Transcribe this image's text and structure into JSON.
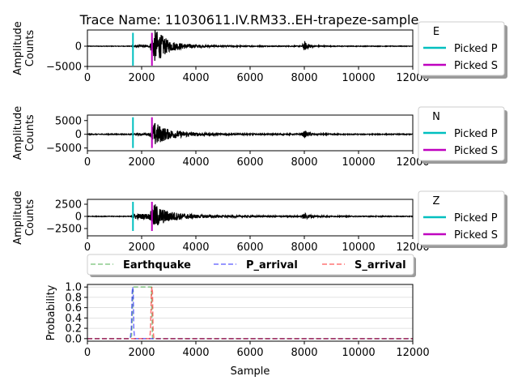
{
  "title": "Trace Name: 11030611.IV.RM33..EH-trapeze-sample",
  "chart_data": [
    {
      "type": "line",
      "channel": "E",
      "ylabel": [
        "Amplitude",
        "Counts"
      ],
      "xlim": [
        0,
        12000
      ],
      "ylim": [
        -5000,
        4000
      ],
      "xticks": [
        "0",
        "2000",
        "4000",
        "6000",
        "8000",
        "10000",
        "12000"
      ],
      "yticks": [
        {
          "v": 0,
          "label": "0"
        },
        {
          "v": -5000,
          "label": "−5000"
        }
      ],
      "picked_p": 1680,
      "picked_s": 2380,
      "pick_line_range": [
        -4800,
        3300
      ],
      "envelope": [
        [
          0,
          60
        ],
        [
          1600,
          60
        ],
        [
          1700,
          240
        ],
        [
          2300,
          260
        ],
        [
          2400,
          2400
        ],
        [
          2500,
          4200
        ],
        [
          2700,
          3000
        ],
        [
          3000,
          1400
        ],
        [
          3500,
          700
        ],
        [
          4000,
          350
        ],
        [
          5000,
          170
        ],
        [
          6000,
          120
        ],
        [
          7000,
          100
        ],
        [
          7900,
          110
        ],
        [
          8000,
          1200
        ],
        [
          8100,
          700
        ],
        [
          8400,
          180
        ],
        [
          9000,
          90
        ],
        [
          12000,
          60
        ]
      ],
      "legend": {
        "title": "E",
        "entries": [
          "Picked P",
          "Picked S"
        ]
      }
    },
    {
      "type": "line",
      "channel": "N",
      "ylabel": [
        "Amplitude",
        "Counts"
      ],
      "xlim": [
        0,
        12000
      ],
      "ylim": [
        -6000,
        7000
      ],
      "xticks": [
        "0",
        "2000",
        "4000",
        "6000",
        "8000",
        "10000",
        "12000"
      ],
      "yticks": [
        {
          "v": 5000,
          "label": "5000"
        },
        {
          "v": 0,
          "label": "0"
        },
        {
          "v": -5000,
          "label": "−5000"
        }
      ],
      "picked_p": 1680,
      "picked_s": 2380,
      "pick_line_range": [
        -5000,
        6200
      ],
      "envelope": [
        [
          0,
          150
        ],
        [
          1600,
          150
        ],
        [
          1700,
          300
        ],
        [
          2300,
          350
        ],
        [
          2400,
          3000
        ],
        [
          2500,
          4500
        ],
        [
          2700,
          3000
        ],
        [
          3000,
          1800
        ],
        [
          3500,
          1000
        ],
        [
          4000,
          600
        ],
        [
          5000,
          350
        ],
        [
          6000,
          250
        ],
        [
          7000,
          220
        ],
        [
          7900,
          250
        ],
        [
          8000,
          1300
        ],
        [
          8100,
          800
        ],
        [
          8400,
          300
        ],
        [
          9000,
          180
        ],
        [
          12000,
          150
        ]
      ],
      "legend": {
        "title": "N",
        "entries": [
          "Picked P",
          "Picked S"
        ]
      }
    },
    {
      "type": "line",
      "channel": "Z",
      "ylabel": [
        "Amplitude",
        "Counts"
      ],
      "xlim": [
        0,
        12000
      ],
      "ylim": [
        -4000,
        3500
      ],
      "xticks": [
        "0",
        "2000",
        "4000",
        "6000",
        "8000",
        "10000",
        "12000"
      ],
      "yticks": [
        {
          "v": 2500,
          "label": "2500"
        },
        {
          "v": 0,
          "label": "0"
        },
        {
          "v": -2500,
          "label": "−2500"
        }
      ],
      "picked_p": 1680,
      "picked_s": 2380,
      "pick_line_range": [
        -3000,
        3000
      ],
      "envelope": [
        [
          0,
          60
        ],
        [
          1600,
          60
        ],
        [
          1700,
          500
        ],
        [
          2300,
          600
        ],
        [
          2400,
          1900
        ],
        [
          2500,
          2600
        ],
        [
          2700,
          1700
        ],
        [
          3000,
          1100
        ],
        [
          3500,
          600
        ],
        [
          4000,
          380
        ],
        [
          5000,
          230
        ],
        [
          6000,
          160
        ],
        [
          7000,
          130
        ],
        [
          7900,
          160
        ],
        [
          8000,
          700
        ],
        [
          8100,
          500
        ],
        [
          8400,
          200
        ],
        [
          9000,
          110
        ],
        [
          12000,
          60
        ]
      ],
      "legend": {
        "title": "Z",
        "entries": [
          "Picked P",
          "Picked S"
        ]
      }
    },
    {
      "type": "line",
      "xlabel": "Sample",
      "ylabel": "Probability",
      "xlim": [
        0,
        12000
      ],
      "ylim": [
        -0.05,
        1.05
      ],
      "xticks": [
        "0",
        "2000",
        "4000",
        "6000",
        "8000",
        "10000",
        "12000"
      ],
      "yticks": [
        "0.0",
        "0.2",
        "0.4",
        "0.6",
        "0.8",
        "1.0"
      ],
      "grid": "horizontal",
      "legend": "above",
      "series": [
        {
          "name": "Earthquake",
          "color": "#2ca02c",
          "x": [
            0,
            1550,
            1630,
            1660,
            1680,
            2360,
            2380,
            2400,
            12000
          ],
          "y": [
            0,
            0,
            0.05,
            0.5,
            1,
            1,
            0.5,
            0,
            0
          ]
        },
        {
          "name": "P_arrival",
          "color": "#0000ff",
          "x": [
            0,
            1580,
            1620,
            1650,
            1670,
            1690,
            1710,
            1740,
            12000
          ],
          "y": [
            0,
            0,
            0.2,
            0.9,
            1,
            0.9,
            0.2,
            0,
            0
          ]
        },
        {
          "name": "S_arrival",
          "color": "#ff0000",
          "x": [
            0,
            2300,
            2330,
            2360,
            2380,
            2400,
            2420,
            2450,
            12000
          ],
          "y": [
            0,
            0,
            0.2,
            0.9,
            1,
            0.9,
            0.2,
            0,
            0
          ]
        }
      ]
    }
  ],
  "colors": {
    "picked_p": "#00bfbf",
    "picked_s": "#bf00bf",
    "trace": "#000000"
  }
}
